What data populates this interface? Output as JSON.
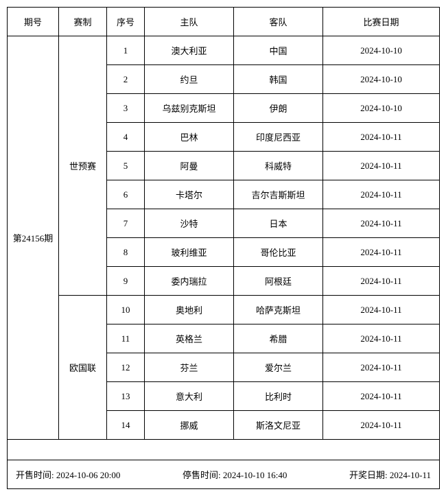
{
  "headers": {
    "period": "期号",
    "type": "赛制",
    "seq": "序号",
    "home": "主队",
    "away": "客队",
    "date": "比赛日期"
  },
  "period_label": "第24156期",
  "group1": {
    "type": "世预赛",
    "rows": [
      {
        "seq": "1",
        "home": "澳大利亚",
        "away": "中国",
        "date": "2024-10-10"
      },
      {
        "seq": "2",
        "home": "约旦",
        "away": "韩国",
        "date": "2024-10-10"
      },
      {
        "seq": "3",
        "home": "乌兹别克斯坦",
        "away": "伊朗",
        "date": "2024-10-10"
      },
      {
        "seq": "4",
        "home": "巴林",
        "away": "印度尼西亚",
        "date": "2024-10-11"
      },
      {
        "seq": "5",
        "home": "阿曼",
        "away": "科威特",
        "date": "2024-10-11"
      },
      {
        "seq": "6",
        "home": "卡塔尔",
        "away": "吉尔吉斯斯坦",
        "date": "2024-10-11"
      },
      {
        "seq": "7",
        "home": "沙特",
        "away": "日本",
        "date": "2024-10-11"
      },
      {
        "seq": "8",
        "home": "玻利维亚",
        "away": "哥伦比亚",
        "date": "2024-10-11"
      },
      {
        "seq": "9",
        "home": "委内瑞拉",
        "away": "阿根廷",
        "date": "2024-10-11"
      }
    ]
  },
  "group2": {
    "type": "欧国联",
    "rows": [
      {
        "seq": "10",
        "home": "奥地利",
        "away": "哈萨克斯坦",
        "date": "2024-10-11"
      },
      {
        "seq": "11",
        "home": "英格兰",
        "away": "希腊",
        "date": "2024-10-11"
      },
      {
        "seq": "12",
        "home": "芬兰",
        "away": "爱尔兰",
        "date": "2024-10-11"
      },
      {
        "seq": "13",
        "home": "意大利",
        "away": "比利时",
        "date": "2024-10-11"
      },
      {
        "seq": "14",
        "home": "挪威",
        "away": "斯洛文尼亚",
        "date": "2024-10-11"
      }
    ]
  },
  "footer": {
    "open_label": "开售时间:",
    "open_value": "2024-10-06 20:00",
    "close_label": "停售时间:",
    "close_value": "2024-10-10 16:40",
    "draw_label": "开奖日期:",
    "draw_value": "2024-10-11"
  }
}
